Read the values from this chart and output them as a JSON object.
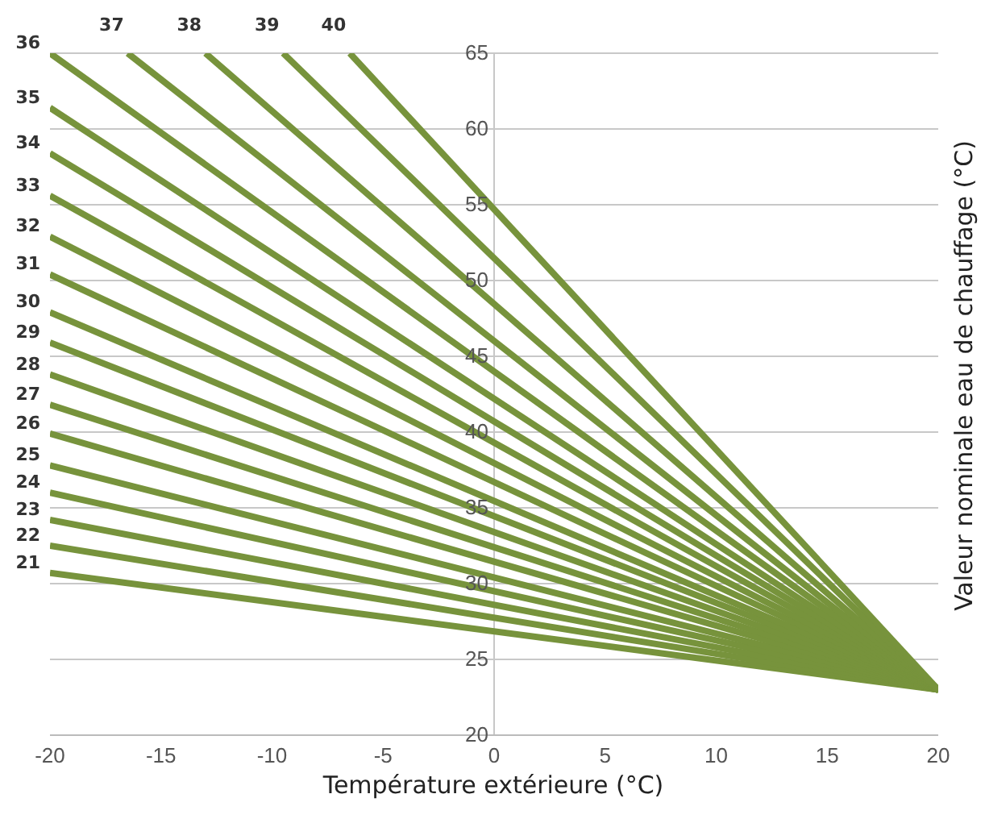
{
  "chart_data": {
    "type": "line",
    "xlabel": "Température extérieure (°C)",
    "ylabel": "Valeur nominale eau de chauffage (°C)",
    "xlim": [
      -20,
      20
    ],
    "ylim": [
      20,
      65
    ],
    "xticks": [
      -20,
      -15,
      -10,
      -5,
      0,
      5,
      10,
      15,
      20
    ],
    "yticks": [
      20,
      25,
      30,
      35,
      40,
      45,
      50,
      55,
      60,
      65
    ],
    "grid": "y",
    "legend": false,
    "marker": "none",
    "line_style": "solid",
    "series": [
      {
        "name": "21",
        "color": "#77933c",
        "x": [
          -20,
          20
        ],
        "values": [
          30.7,
          23
        ]
      },
      {
        "name": "22",
        "color": "#77933c",
        "x": [
          -20,
          20
        ],
        "values": [
          32.5,
          23
        ]
      },
      {
        "name": "23",
        "color": "#77933c",
        "x": [
          -20,
          20
        ],
        "values": [
          34.2,
          23
        ]
      },
      {
        "name": "24",
        "color": "#77933c",
        "x": [
          -20,
          20
        ],
        "values": [
          36,
          23
        ]
      },
      {
        "name": "25",
        "color": "#77933c",
        "x": [
          -20,
          20
        ],
        "values": [
          37.8,
          23
        ]
      },
      {
        "name": "26",
        "color": "#77933c",
        "x": [
          -20,
          20
        ],
        "values": [
          39.9,
          23
        ]
      },
      {
        "name": "27",
        "color": "#77933c",
        "x": [
          -20,
          20
        ],
        "values": [
          41.8,
          23
        ]
      },
      {
        "name": "28",
        "color": "#77933c",
        "x": [
          -20,
          20
        ],
        "values": [
          43.8,
          23
        ]
      },
      {
        "name": "29",
        "color": "#77933c",
        "x": [
          -20,
          20
        ],
        "values": [
          45.9,
          23
        ]
      },
      {
        "name": "30",
        "color": "#77933c",
        "x": [
          -20,
          20
        ],
        "values": [
          47.9,
          23
        ]
      },
      {
        "name": "31",
        "color": "#77933c",
        "x": [
          -20,
          20
        ],
        "values": [
          50.4,
          23
        ]
      },
      {
        "name": "32",
        "color": "#77933c",
        "x": [
          -20,
          20
        ],
        "values": [
          52.9,
          23
        ]
      },
      {
        "name": "33",
        "color": "#77933c",
        "x": [
          -20,
          20
        ],
        "values": [
          55.6,
          23
        ]
      },
      {
        "name": "34",
        "color": "#77933c",
        "x": [
          -20,
          20
        ],
        "values": [
          58.4,
          23
        ]
      },
      {
        "name": "35",
        "color": "#77933c",
        "x": [
          -20,
          20
        ],
        "values": [
          61.4,
          23
        ]
      },
      {
        "name": "36",
        "color": "#77933c",
        "x": [
          -20,
          20
        ],
        "values": [
          65,
          23
        ]
      },
      {
        "name": "37",
        "color": "#77933c",
        "x": [
          -16.5,
          20
        ],
        "values": [
          65,
          23
        ]
      },
      {
        "name": "38",
        "color": "#77933c",
        "x": [
          -13,
          20
        ],
        "values": [
          65,
          23
        ]
      },
      {
        "name": "39",
        "color": "#77933c",
        "x": [
          -9.5,
          20
        ],
        "values": [
          65,
          23
        ]
      },
      {
        "name": "40",
        "color": "#77933c",
        "x": [
          -6.5,
          20
        ],
        "values": [
          65,
          23
        ]
      }
    ]
  }
}
